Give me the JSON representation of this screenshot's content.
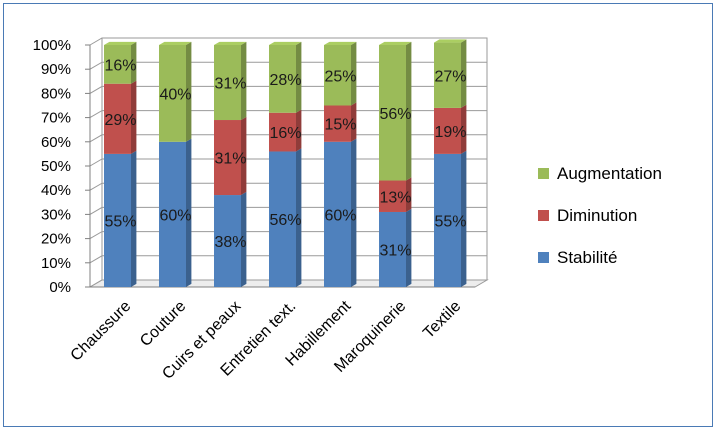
{
  "chart_data": {
    "type": "bar",
    "stacked": true,
    "percent": true,
    "categories": [
      "Chaussure",
      "Couture",
      "Cuirs et peaux",
      "Entretien text.",
      "Habillement",
      "Maroquinerie",
      "Textile"
    ],
    "series": [
      {
        "name": "Stabilité",
        "color": "#4f81bd",
        "values": [
          55,
          60,
          38,
          56,
          60,
          31,
          55
        ],
        "labels": [
          "55%",
          "60%",
          "38%",
          "56%",
          "60%",
          "31%",
          "55%"
        ]
      },
      {
        "name": "Diminution",
        "color": "#c0504d",
        "values": [
          29,
          0,
          31,
          16,
          15,
          13,
          19
        ],
        "labels": [
          "29%",
          "",
          "31%",
          "16%",
          "15%",
          "13%",
          "19%"
        ]
      },
      {
        "name": "Augmentation",
        "color": "#9bbb59",
        "values": [
          16,
          40,
          31,
          28,
          25,
          56,
          27
        ],
        "labels": [
          "16%",
          "40%",
          "31%",
          "28%",
          "25%",
          "56%",
          "27%"
        ]
      }
    ],
    "ylim": [
      0,
      100
    ],
    "yticks": [
      "0%",
      "10%",
      "20%",
      "30%",
      "40%",
      "50%",
      "60%",
      "70%",
      "80%",
      "90%",
      "100%"
    ],
    "grid": true,
    "legend": {
      "position": "right",
      "order": [
        "Augmentation",
        "Diminution",
        "Stabilité"
      ]
    }
  }
}
